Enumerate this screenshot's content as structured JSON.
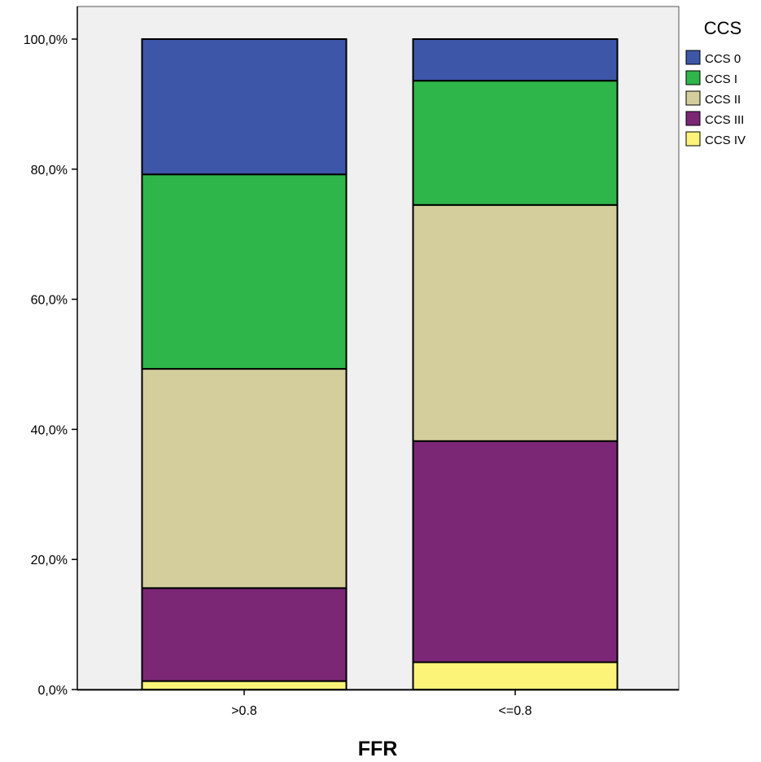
{
  "chart_data": {
    "type": "bar",
    "stacked": true,
    "categories": [
      ">0.8",
      "<=0.8"
    ],
    "series": [
      {
        "name": "CCS IV",
        "color": "#FCF479",
        "values": [
          1.3,
          4.2
        ]
      },
      {
        "name": "CCS III",
        "color": "#7B2776",
        "values": [
          14.3,
          34.0
        ]
      },
      {
        "name": "CCS II",
        "color": "#D3CE9C",
        "values": [
          33.7,
          36.3
        ]
      },
      {
        "name": "CCS I",
        "color": "#2EB64A",
        "values": [
          29.9,
          19.1
        ]
      },
      {
        "name": "CCS 0",
        "color": "#3D56A8",
        "values": [
          20.8,
          6.4
        ]
      }
    ],
    "xlabel": "FFR",
    "ylabel": "",
    "ylim": [
      0,
      100
    ],
    "yticks": [
      "0,0%",
      "20,0%",
      "40,0%",
      "60,0%",
      "80,0%",
      "100,0%"
    ],
    "legend": {
      "title": "CCS",
      "position": "right",
      "entries": [
        "CCS 0",
        "CCS I",
        "CCS II",
        "CCS III",
        "CCS IV"
      ]
    },
    "grid": false,
    "plot_background": "#F0F0F0"
  }
}
